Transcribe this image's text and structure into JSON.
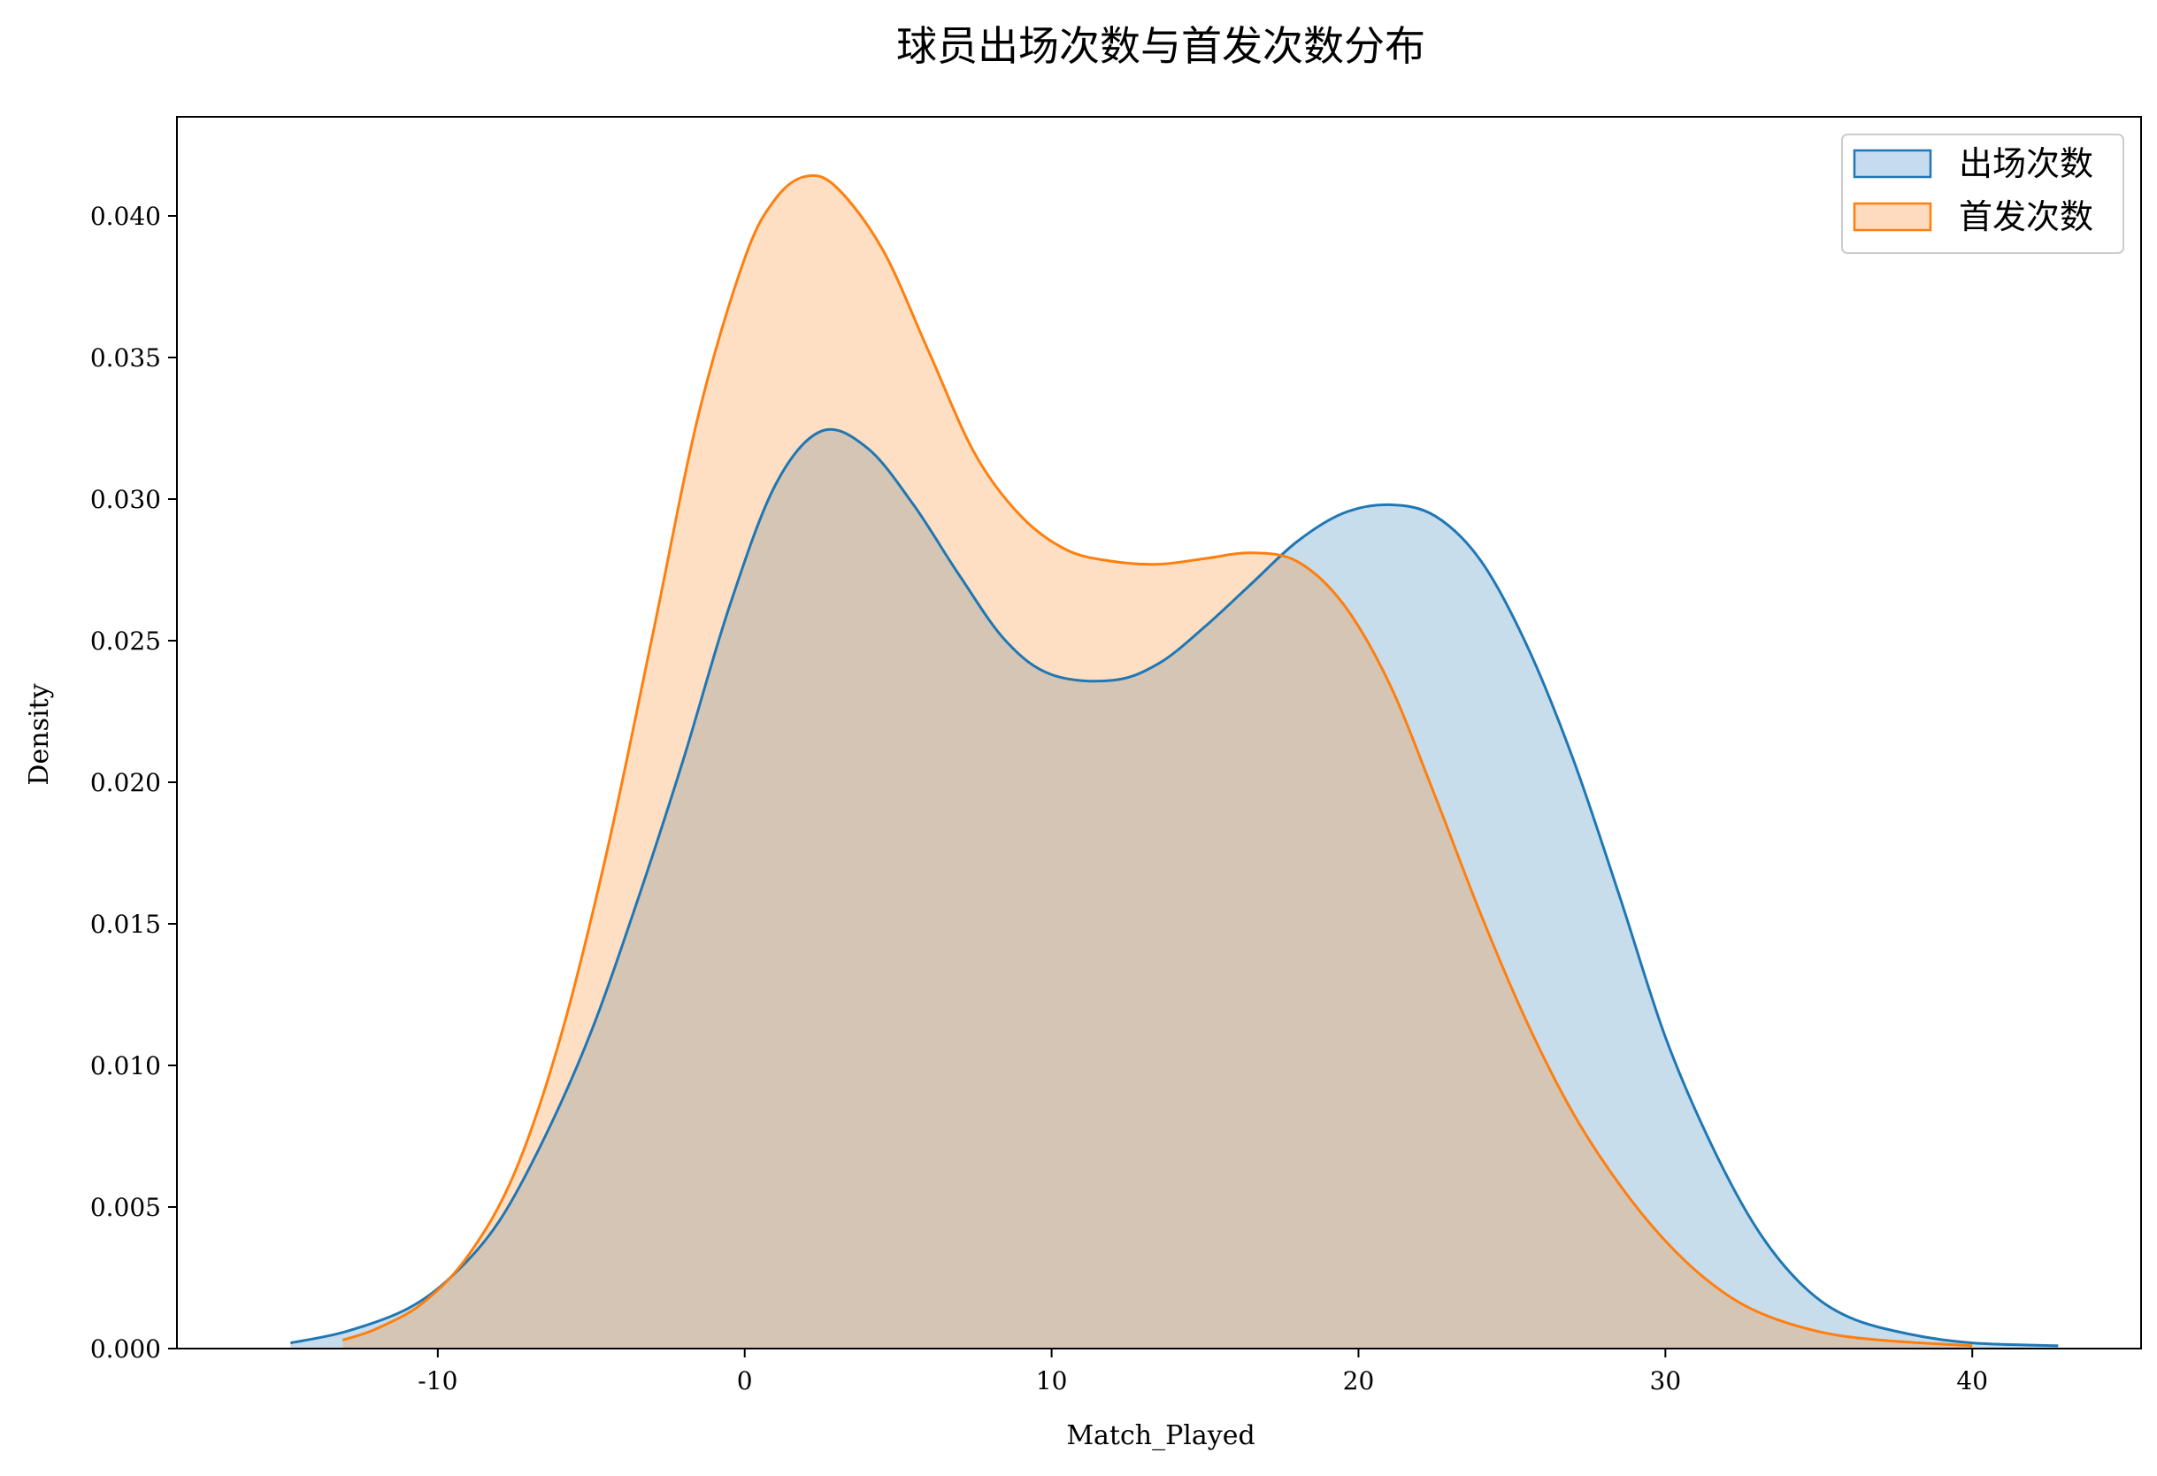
{
  "chart_data": {
    "type": "area",
    "title": "球员出场次数与首发次数分布",
    "xlabel": "Match_Played",
    "ylabel": "Density",
    "xlim": [
      -18.5,
      45.5
    ],
    "ylim": [
      0,
      0.0435
    ],
    "x_ticks": [
      -10,
      0,
      10,
      20,
      30,
      40
    ],
    "x_tick_labels": [
      "-10",
      "0",
      "10",
      "20",
      "30",
      "40"
    ],
    "y_ticks": [
      0,
      0.005,
      0.01,
      0.015,
      0.02,
      0.025,
      0.03,
      0.035,
      0.04
    ],
    "y_tick_labels": [
      "0.000",
      "0.005",
      "0.010",
      "0.015",
      "0.020",
      "0.025",
      "0.030",
      "0.035",
      "0.040"
    ],
    "grid": false,
    "legend_position": "top-right",
    "series": [
      {
        "name": "出场次数",
        "color": "#1f77b4",
        "fill_color": "#c6dcee",
        "points": [
          [
            -14.8,
            0.0002
          ],
          [
            -13,
            0.0006
          ],
          [
            -11,
            0.0014
          ],
          [
            -9.5,
            0.0026
          ],
          [
            -8,
            0.0045
          ],
          [
            -6.5,
            0.0075
          ],
          [
            -5,
            0.0112
          ],
          [
            -3.5,
            0.0158
          ],
          [
            -2,
            0.0208
          ],
          [
            -0.5,
            0.0262
          ],
          [
            1,
            0.0305
          ],
          [
            2.5,
            0.0324
          ],
          [
            4,
            0.0318
          ],
          [
            5.5,
            0.0298
          ],
          [
            7,
            0.0273
          ],
          [
            8.5,
            0.025
          ],
          [
            10,
            0.0238
          ],
          [
            12,
            0.0236
          ],
          [
            13.5,
            0.0242
          ],
          [
            15,
            0.0255
          ],
          [
            16.5,
            0.027
          ],
          [
            18,
            0.0285
          ],
          [
            19.5,
            0.0295
          ],
          [
            21,
            0.0298
          ],
          [
            22.5,
            0.0294
          ],
          [
            24,
            0.0278
          ],
          [
            25.5,
            0.0248
          ],
          [
            27,
            0.0208
          ],
          [
            28.5,
            0.016
          ],
          [
            30,
            0.011
          ],
          [
            31.5,
            0.0072
          ],
          [
            33,
            0.0042
          ],
          [
            34.5,
            0.0022
          ],
          [
            36,
            0.0011
          ],
          [
            38,
            0.0005
          ],
          [
            40,
            0.0002
          ],
          [
            42.8,
            0.0001
          ]
        ]
      },
      {
        "name": "首发次数",
        "color": "#ff7f0e",
        "fill_color": "#fedbbe",
        "points": [
          [
            -13.1,
            0.0003
          ],
          [
            -12,
            0.0007
          ],
          [
            -10.5,
            0.0016
          ],
          [
            -9,
            0.0033
          ],
          [
            -7.5,
            0.0062
          ],
          [
            -6,
            0.011
          ],
          [
            -4.5,
            0.0175
          ],
          [
            -3,
            0.0252
          ],
          [
            -1.5,
            0.033
          ],
          [
            0,
            0.0385
          ],
          [
            1,
            0.0406
          ],
          [
            2,
            0.0414
          ],
          [
            3,
            0.041
          ],
          [
            4.5,
            0.0388
          ],
          [
            6,
            0.0352
          ],
          [
            7.5,
            0.0316
          ],
          [
            9,
            0.0294
          ],
          [
            10.5,
            0.0282
          ],
          [
            12,
            0.0278
          ],
          [
            13.5,
            0.0277
          ],
          [
            15,
            0.0279
          ],
          [
            16.5,
            0.0281
          ],
          [
            18,
            0.0278
          ],
          [
            19.5,
            0.0263
          ],
          [
            21,
            0.0235
          ],
          [
            22.5,
            0.0195
          ],
          [
            24,
            0.0153
          ],
          [
            25.5,
            0.0115
          ],
          [
            27,
            0.0083
          ],
          [
            28.5,
            0.0058
          ],
          [
            30,
            0.0038
          ],
          [
            31.5,
            0.0023
          ],
          [
            33,
            0.0013
          ],
          [
            35,
            0.0006
          ],
          [
            37,
            0.0003
          ],
          [
            40,
            0.0001
          ]
        ]
      }
    ]
  }
}
